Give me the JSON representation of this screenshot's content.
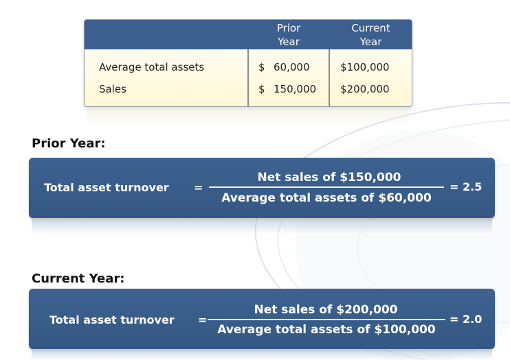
{
  "table": {
    "header": {
      "prior_line1": "Prior",
      "prior_line2": "Year",
      "current_line1": "Current",
      "current_line2": "Year"
    },
    "rows": [
      {
        "label": "Average total assets",
        "prior_symbol": "$",
        "prior_amount": "60,000",
        "current": "$100,000"
      },
      {
        "label": "Sales",
        "prior_symbol": "$",
        "prior_amount": "150,000",
        "current": "$200,000"
      }
    ]
  },
  "prior_section": {
    "title": "Prior Year:",
    "label": "Total asset turnover",
    "equals": "=",
    "numerator": "Net sales of $150,000",
    "denominator": "Average total assets of $60,000",
    "result": "= 2.5"
  },
  "current_section": {
    "title": "Current Year:",
    "label": "Total asset turnover",
    "equals": "=",
    "numerator": "Net sales of $200,000",
    "denominator": "Average total assets of $100,000",
    "result": "= 2.0"
  },
  "colors": {
    "box_blue": "#3c5f8f",
    "table_cell_bg": "#fffce4",
    "text_dark": "#1e1e1e"
  }
}
